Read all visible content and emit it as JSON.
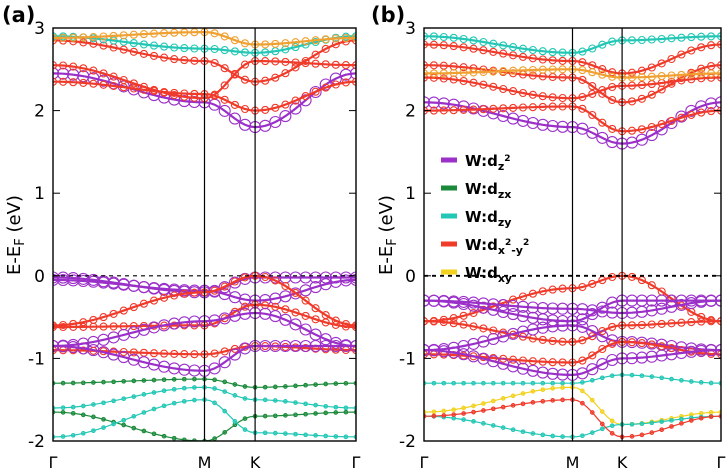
{
  "figure": {
    "legend": {
      "entries": [
        {
          "id": "dz2",
          "prefix": "W:d",
          "sub": "z",
          "sup": "2",
          "sub2": "",
          "color": "#9b30c9"
        },
        {
          "id": "dzx",
          "prefix": "W:d",
          "sub": "zx",
          "sup": "",
          "sub2": "",
          "color": "#1a8a3a"
        },
        {
          "id": "dzy",
          "prefix": "W:d",
          "sub": "zy",
          "sup": "",
          "sub2": "",
          "color": "#22c7b5"
        },
        {
          "id": "dx2y2",
          "prefix": "W:d",
          "sub": "x",
          "sup": "2",
          "sub2": "-y",
          "sup2": "2",
          "color": "#f03a2a"
        },
        {
          "id": "dxy",
          "prefix": "W:d",
          "sub": "xy",
          "sup": "",
          "sub2": "",
          "color": "#f2d21e"
        }
      ]
    },
    "colors": {
      "dz2": "#9b30c9",
      "dzx": "#1a8a3a",
      "dzy": "#22c7b5",
      "dx2y2": "#f03a2a",
      "dxy": "#f2d21e",
      "orange": "#f0a030"
    }
  },
  "chart_data": [
    {
      "panel_label": "(a)",
      "type": "line",
      "ylabel": "E-E",
      "ylabel_sub": "F",
      "ylabel_unit": " (eV)",
      "ylim": [
        -2,
        3
      ],
      "yticks": [
        "-2",
        "-1",
        "0",
        "1",
        "2",
        "3"
      ],
      "xticks": [
        "Γ",
        "M",
        "K",
        "Γ"
      ],
      "xtick_positions": [
        0,
        0.5,
        0.667,
        1
      ],
      "fermi_level": 0,
      "bands": [
        {
          "orbital": "dz2",
          "k": [
            0,
            0.5,
            0.667,
            1
          ],
          "E": [
            -0.02,
            -0.2,
            -0.02,
            -0.02
          ]
        },
        {
          "orbital": "dz2",
          "k": [
            0,
            0.5,
            0.667,
            1
          ],
          "E": [
            -0.05,
            -0.18,
            -0.3,
            -0.05
          ]
        },
        {
          "orbital": "dx2y2",
          "k": [
            0,
            0.5,
            0.667,
            1
          ],
          "E": [
            -0.6,
            -0.2,
            0.0,
            -0.6
          ]
        },
        {
          "orbital": "dx2y2",
          "k": [
            0,
            0.5,
            0.667,
            1
          ],
          "E": [
            -0.62,
            -0.6,
            -0.35,
            -0.62
          ]
        },
        {
          "orbital": "dz2",
          "k": [
            0,
            0.5,
            0.667,
            1
          ],
          "E": [
            -0.85,
            -0.55,
            -0.45,
            -0.85
          ]
        },
        {
          "orbital": "dx2y2",
          "k": [
            0,
            0.5,
            0.667,
            1
          ],
          "E": [
            -0.9,
            -0.95,
            -0.85,
            -0.9
          ]
        },
        {
          "orbital": "dz2",
          "k": [
            0,
            0.5,
            0.667,
            1
          ],
          "E": [
            -0.85,
            -1.15,
            -0.85,
            -0.85
          ]
        },
        {
          "orbital": "dzx",
          "k": [
            0,
            0.5,
            0.667,
            1
          ],
          "E": [
            -1.3,
            -1.25,
            -1.35,
            -1.3
          ]
        },
        {
          "orbital": "dzy",
          "k": [
            0,
            0.5,
            0.667,
            1
          ],
          "E": [
            -1.6,
            -1.35,
            -1.5,
            -1.6
          ]
        },
        {
          "orbital": "dzx",
          "k": [
            0,
            0.5,
            0.667,
            1
          ],
          "E": [
            -1.65,
            -2.0,
            -1.7,
            -1.65
          ]
        },
        {
          "orbital": "dzy",
          "k": [
            0,
            0.5,
            0.667,
            1
          ],
          "E": [
            -1.95,
            -1.5,
            -1.9,
            -1.95
          ]
        },
        {
          "orbital": "dz2",
          "k": [
            0,
            0.5,
            0.667,
            1
          ],
          "E": [
            2.45,
            2.1,
            1.8,
            2.45
          ]
        },
        {
          "orbital": "dx2y2",
          "k": [
            0,
            0.5,
            0.667,
            1
          ],
          "E": [
            2.35,
            2.2,
            2.0,
            2.35
          ]
        },
        {
          "orbital": "dx2y2",
          "k": [
            0,
            0.5,
            0.667,
            1
          ],
          "E": [
            2.55,
            2.15,
            2.6,
            2.55
          ]
        },
        {
          "orbital": "dx2y2",
          "k": [
            0,
            0.5,
            0.667,
            1
          ],
          "E": [
            2.85,
            2.6,
            2.35,
            2.85
          ]
        },
        {
          "orbital": "dzy",
          "k": [
            0,
            0.5,
            0.667,
            1
          ],
          "E": [
            2.9,
            2.75,
            2.7,
            2.9
          ]
        },
        {
          "orbital": "orange",
          "k": [
            0,
            0.5,
            0.667,
            1
          ],
          "E": [
            2.88,
            2.95,
            2.8,
            2.88
          ]
        }
      ]
    },
    {
      "panel_label": "(b)",
      "type": "line",
      "ylabel": "E-E",
      "ylabel_sub": "F",
      "ylabel_unit": " (eV)",
      "ylim": [
        -2,
        3
      ],
      "yticks": [
        "-2",
        "-1",
        "0",
        "1",
        "2",
        "3"
      ],
      "xticks": [
        "Γ",
        "M",
        "K",
        "Γ"
      ],
      "xtick_positions": [
        0,
        0.5,
        0.667,
        1
      ],
      "fermi_level": 0,
      "bands": [
        {
          "orbital": "dx2y2",
          "k": [
            0,
            0.5,
            0.667,
            1
          ],
          "E": [
            -0.55,
            -0.15,
            0.0,
            -0.55
          ]
        },
        {
          "orbital": "dz2",
          "k": [
            0,
            0.5,
            0.667,
            1
          ],
          "E": [
            -0.3,
            -0.4,
            -0.45,
            -0.3
          ]
        },
        {
          "orbital": "dz2",
          "k": [
            0,
            0.5,
            0.667,
            1
          ],
          "E": [
            -0.3,
            -0.55,
            -0.3,
            -0.3
          ]
        },
        {
          "orbital": "dx2y2",
          "k": [
            0,
            0.5,
            0.667,
            1
          ],
          "E": [
            -0.55,
            -0.8,
            -0.6,
            -0.55
          ]
        },
        {
          "orbital": "dz2",
          "k": [
            0,
            0.5,
            0.667,
            1
          ],
          "E": [
            -0.9,
            -0.6,
            -0.8,
            -0.9
          ]
        },
        {
          "orbital": "dx2y2",
          "k": [
            0,
            0.5,
            0.667,
            1
          ],
          "E": [
            -0.95,
            -1.05,
            -0.8,
            -0.95
          ]
        },
        {
          "orbital": "dz2",
          "k": [
            0,
            0.5,
            0.667,
            1
          ],
          "E": [
            -0.9,
            -1.2,
            -1.0,
            -0.9
          ]
        },
        {
          "orbital": "dzy",
          "k": [
            0,
            0.5,
            0.667,
            1
          ],
          "E": [
            -1.3,
            -1.3,
            -1.2,
            -1.3
          ]
        },
        {
          "orbital": "dxy",
          "k": [
            0,
            0.5,
            0.667,
            1
          ],
          "E": [
            -1.65,
            -1.35,
            -1.8,
            -1.65
          ]
        },
        {
          "orbital": "dzy",
          "k": [
            0,
            0.5,
            0.667,
            1
          ],
          "E": [
            -1.7,
            -1.95,
            -1.8,
            -1.7
          ]
        },
        {
          "orbital": "dx2y2",
          "k": [
            0,
            0.5,
            0.667,
            1
          ],
          "E": [
            -1.7,
            -1.5,
            -1.95,
            -1.7
          ]
        },
        {
          "orbital": "dz2",
          "k": [
            0,
            0.5,
            0.667,
            1
          ],
          "E": [
            2.1,
            1.8,
            1.6,
            2.1
          ]
        },
        {
          "orbital": "dx2y2",
          "k": [
            0,
            0.5,
            0.667,
            1
          ],
          "E": [
            2.0,
            2.05,
            1.75,
            2.0
          ]
        },
        {
          "orbital": "dx2y2",
          "k": [
            0,
            0.5,
            0.667,
            1
          ],
          "E": [
            2.4,
            2.15,
            2.3,
            2.4
          ]
        },
        {
          "orbital": "dx2y2",
          "k": [
            0,
            0.5,
            0.667,
            1
          ],
          "E": [
            2.55,
            2.4,
            2.1,
            2.55
          ]
        },
        {
          "orbital": "dx2y2",
          "k": [
            0,
            0.5,
            0.667,
            1
          ],
          "E": [
            2.8,
            2.6,
            2.45,
            2.8
          ]
        },
        {
          "orbital": "dzy",
          "k": [
            0,
            0.5,
            0.667,
            1
          ],
          "E": [
            2.9,
            2.7,
            2.85,
            2.9
          ]
        },
        {
          "orbital": "orange",
          "k": [
            0,
            0.5,
            0.667,
            1
          ],
          "E": [
            2.45,
            2.5,
            2.4,
            2.45
          ]
        }
      ]
    }
  ]
}
